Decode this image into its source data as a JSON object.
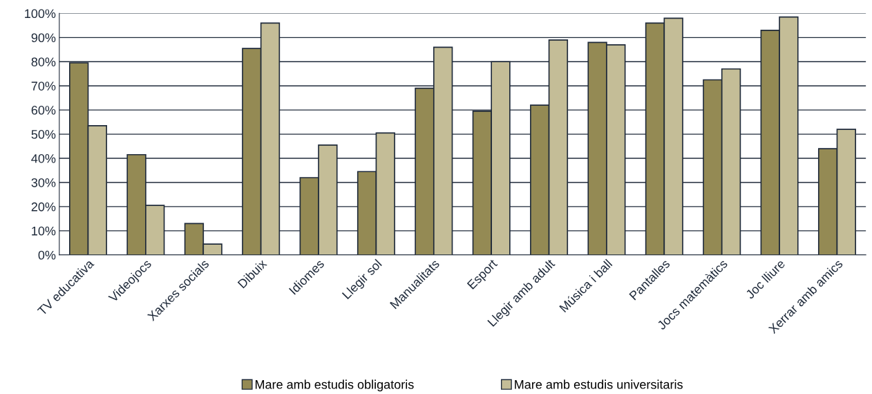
{
  "chart_data": {
    "type": "bar",
    "categories": [
      "TV educativa",
      "Videojocs",
      "Xarxes socials",
      "Dibuix",
      "Idiomes",
      "Llegir sol",
      "Manualitats",
      "Esport",
      "Llegir amb adult",
      "Música i ball",
      "Pantalles",
      "Jocs matemàtics",
      "Joc lliure",
      "Xerrar amb amics"
    ],
    "series": [
      {
        "name": "Mare amb estudis obligatoris",
        "color": "#948a54",
        "values": [
          79.5,
          41.5,
          13,
          85.5,
          32,
          34.5,
          69,
          59.5,
          62,
          88,
          96,
          72.5,
          93,
          44
        ]
      },
      {
        "name": "Mare amb estudis universitaris",
        "color": "#c4bd97",
        "values": [
          53.5,
          20.5,
          4.5,
          96,
          45.5,
          50.5,
          86,
          80,
          89,
          87,
          98,
          77,
          98.5,
          52
        ]
      }
    ],
    "ylim": [
      0,
      100
    ],
    "yticks": [
      {
        "value": 0,
        "label": "0%"
      },
      {
        "value": 10,
        "label": "10%"
      },
      {
        "value": 20,
        "label": "20%"
      },
      {
        "value": 30,
        "label": "30%"
      },
      {
        "value": 40,
        "label": "40%"
      },
      {
        "value": 50,
        "label": "50%"
      },
      {
        "value": 60,
        "label": "60%"
      },
      {
        "value": 70,
        "label": "70%"
      },
      {
        "value": 80,
        "label": "80%"
      },
      {
        "value": 90,
        "label": "90%"
      },
      {
        "value": 100,
        "label": "100%"
      }
    ],
    "grid": "y",
    "legend": "bottom"
  }
}
